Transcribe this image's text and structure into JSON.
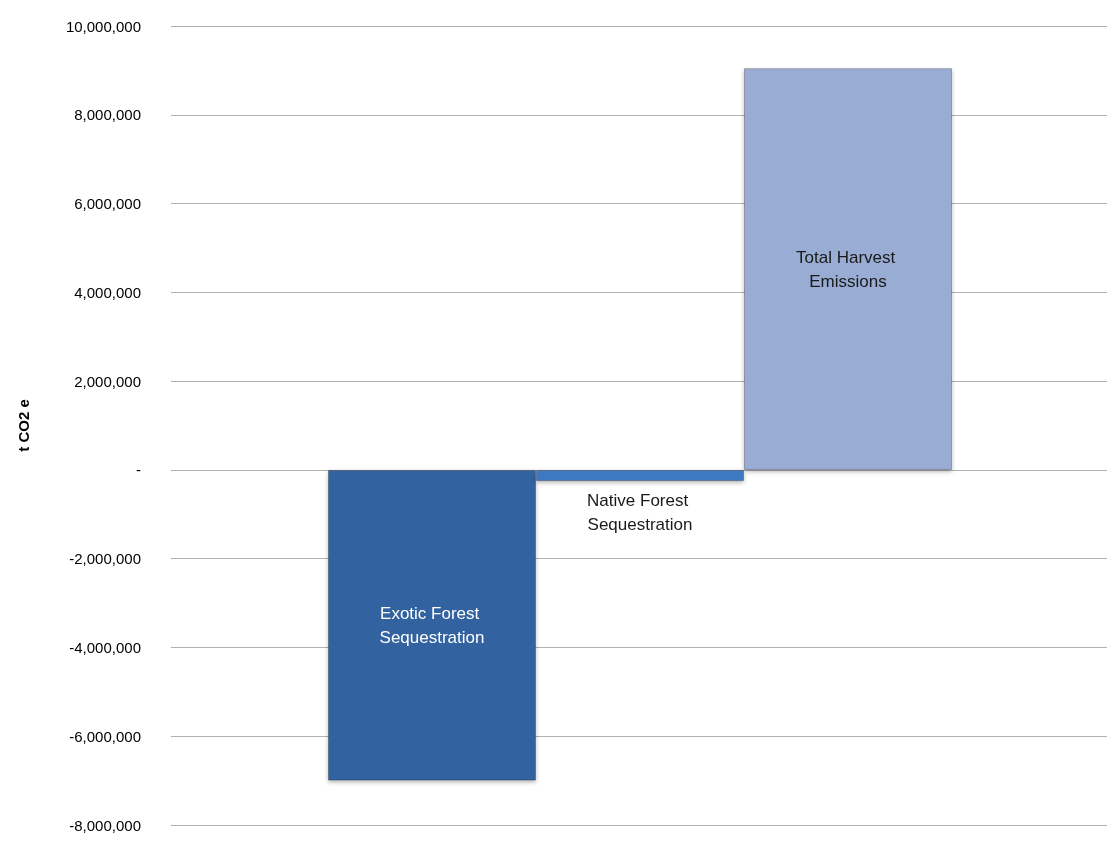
{
  "chart_data": {
    "type": "bar",
    "ylabel": "t CO2 e",
    "categories": [
      "Exotic Forest Sequestration",
      "Native Forest Sequestration",
      "Total Harvest Emissions"
    ],
    "values": [
      -7000000,
      -250000,
      9050000
    ],
    "colors": [
      "#30629f",
      "#3d78c2",
      "#98acd4"
    ],
    "ylim": [
      -8000000,
      10000000
    ],
    "yticks": [
      {
        "value": -8000000,
        "label": "-8,000,000"
      },
      {
        "value": -6000000,
        "label": "-6,000,000"
      },
      {
        "value": -4000000,
        "label": "-4,000,000"
      },
      {
        "value": -2000000,
        "label": "-2,000,000"
      },
      {
        "value": 0,
        "label": "-"
      },
      {
        "value": 2000000,
        "label": "2,000,000"
      },
      {
        "value": 4000000,
        "label": "4,000,000"
      },
      {
        "value": 6000000,
        "label": "6,000,000"
      },
      {
        "value": 8000000,
        "label": "8,000,000"
      },
      {
        "value": 10000000,
        "label": "10,000,000"
      }
    ],
    "grid": "y",
    "tick_labels": "y"
  }
}
